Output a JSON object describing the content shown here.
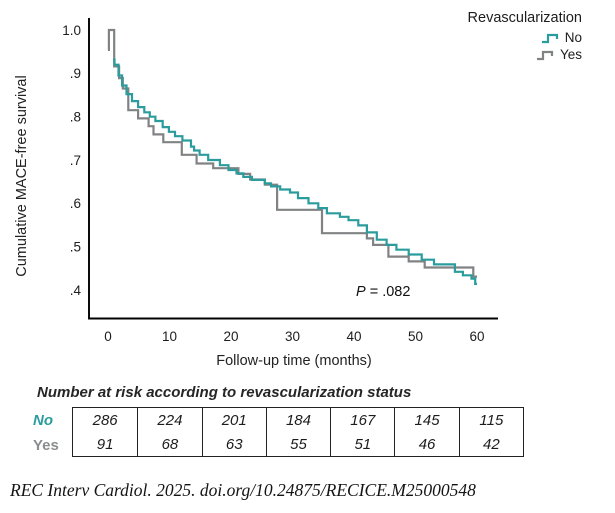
{
  "figure": {
    "y_axis_title": "Cumulative MACE-free survival",
    "x_axis_title": "Follow-up time (months)",
    "p_label": "P",
    "p_rest": " = .082",
    "legend": {
      "title": "Revascularization",
      "items": [
        {
          "label": "No",
          "color": "#2a9c9d"
        },
        {
          "label": "Yes",
          "color": "#808284"
        }
      ]
    }
  },
  "chart_data": {
    "type": "line",
    "subtype": "kaplan-meier-step",
    "title": "",
    "xlabel": "Follow-up time (months)",
    "ylabel": "Cumulative MACE-free survival",
    "xlim": [
      0,
      60
    ],
    "ylim": [
      0.4,
      1.0
    ],
    "x_ticks": [
      0,
      10,
      20,
      30,
      40,
      50,
      60
    ],
    "y_tick_labels": [
      "1.0",
      ".9",
      ".8",
      ".7",
      ".6",
      ".5",
      ".4"
    ],
    "y_tick_values": [
      1.0,
      0.9,
      0.8,
      0.7,
      0.6,
      0.5,
      0.4
    ],
    "grid": false,
    "legend_position": "top-right",
    "annotation_p_value": "P = .082",
    "series": [
      {
        "name": "Yes",
        "color": "#808284",
        "points": [
          [
            0,
            0.954
          ],
          [
            0.15,
            1.0
          ],
          [
            1.0,
            0.916
          ],
          [
            1.8,
            0.889
          ],
          [
            2.4,
            0.865
          ],
          [
            3.3,
            0.815
          ],
          [
            4.9,
            0.796
          ],
          [
            6.6,
            0.778
          ],
          [
            7.4,
            0.759
          ],
          [
            9.0,
            0.741
          ],
          [
            12.0,
            0.712
          ],
          [
            14.4,
            0.692
          ],
          [
            17.1,
            0.681
          ],
          [
            21.2,
            0.668
          ],
          [
            23.1,
            0.655
          ],
          [
            25.5,
            0.643
          ],
          [
            27.5,
            0.585
          ],
          [
            34.8,
            0.531
          ],
          [
            42.1,
            0.519
          ],
          [
            43.1,
            0.504
          ],
          [
            45.6,
            0.477
          ],
          [
            48.9,
            0.466
          ],
          [
            51.5,
            0.452
          ],
          [
            59.4,
            0.431
          ]
        ]
      },
      {
        "name": "No",
        "color": "#2a9c9d",
        "points": [
          [
            0.85,
            0.932
          ],
          [
            1.05,
            0.92
          ],
          [
            1.7,
            0.895
          ],
          [
            2.3,
            0.872
          ],
          [
            3.0,
            0.852
          ],
          [
            3.9,
            0.836
          ],
          [
            4.9,
            0.822
          ],
          [
            5.9,
            0.81
          ],
          [
            6.8,
            0.8
          ],
          [
            7.7,
            0.79
          ],
          [
            8.9,
            0.776
          ],
          [
            9.9,
            0.765
          ],
          [
            10.9,
            0.755
          ],
          [
            12.1,
            0.745
          ],
          [
            13.5,
            0.731
          ],
          [
            14.0,
            0.722
          ],
          [
            14.9,
            0.712
          ],
          [
            16.3,
            0.7
          ],
          [
            18.2,
            0.688
          ],
          [
            19.6,
            0.677
          ],
          [
            20.9,
            0.669
          ],
          [
            22.0,
            0.661
          ],
          [
            23.4,
            0.654
          ],
          [
            25.5,
            0.646
          ],
          [
            26.5,
            0.639
          ],
          [
            28.0,
            0.632
          ],
          [
            29.6,
            0.625
          ],
          [
            30.9,
            0.612
          ],
          [
            32.6,
            0.6
          ],
          [
            34.2,
            0.589
          ],
          [
            35.6,
            0.577
          ],
          [
            37.7,
            0.569
          ],
          [
            39.1,
            0.561
          ],
          [
            40.7,
            0.549
          ],
          [
            42.1,
            0.533
          ],
          [
            43.7,
            0.516
          ],
          [
            45.3,
            0.504
          ],
          [
            46.9,
            0.493
          ],
          [
            48.9,
            0.482
          ],
          [
            51.0,
            0.47
          ],
          [
            53.0,
            0.459
          ],
          [
            56.4,
            0.442
          ],
          [
            57.7,
            0.434
          ],
          [
            59.1,
            0.426
          ],
          [
            59.7,
            0.414
          ]
        ]
      }
    ]
  },
  "risk_table": {
    "title": "Number at risk according to revascularization status",
    "rows": [
      {
        "label": "No",
        "color": "#2a9c9d",
        "italic": true,
        "values": [
          286,
          224,
          201,
          184,
          167,
          145,
          115
        ]
      },
      {
        "label": "Yes",
        "color": "#8b8d8f",
        "italic": false,
        "values": [
          91,
          68,
          63,
          55,
          51,
          46,
          42
        ]
      }
    ]
  },
  "citation": "REC Interv Cardiol. 2025. doi.org/10.24875/RECICE.M25000548"
}
